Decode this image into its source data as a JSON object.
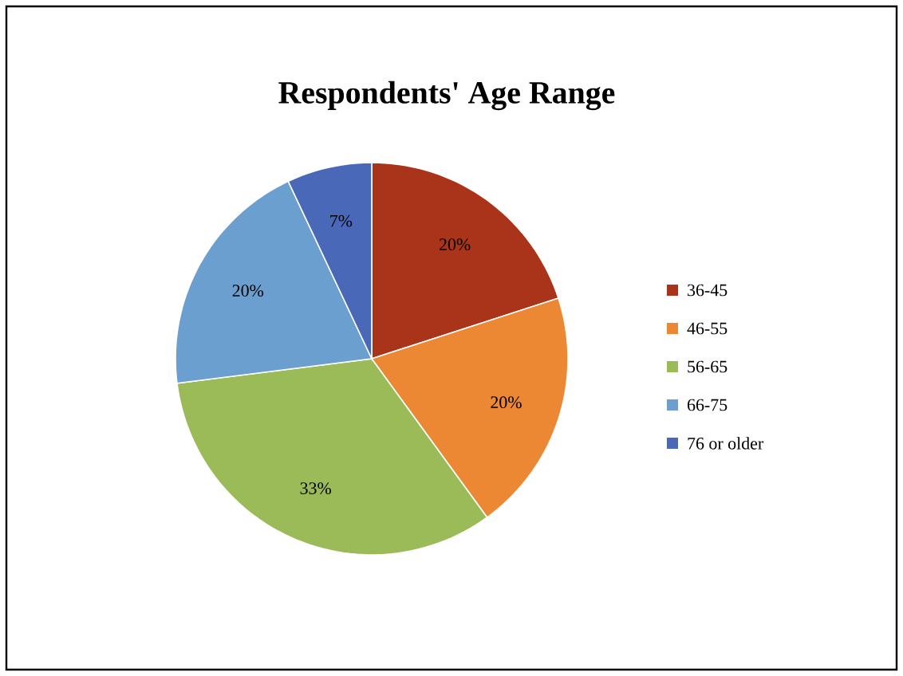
{
  "chart_data": {
    "type": "pie",
    "title": "Respondents' Age Range",
    "categories": [
      "36-45",
      "46-55",
      "56-65",
      "66-75",
      "76 or older"
    ],
    "values": [
      20,
      20,
      33,
      20,
      7
    ],
    "value_labels": [
      "20%",
      "20%",
      "33%",
      "20%",
      "7%"
    ],
    "colors": [
      "#a9341a",
      "#ec8733",
      "#9bbb59",
      "#6a9fd0",
      "#4a68b8"
    ],
    "legend": "right"
  }
}
